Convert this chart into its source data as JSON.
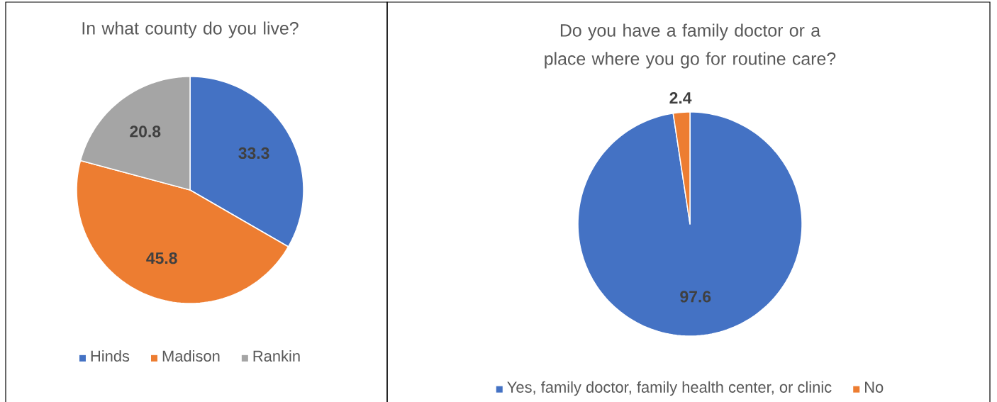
{
  "chart_data": [
    {
      "type": "pie",
      "title": "In what county do you live?",
      "categories": [
        "Hinds",
        "Madison",
        "Rankin"
      ],
      "values": [
        33.3,
        45.8,
        20.8
      ],
      "colors": [
        "#4472c4",
        "#ed7d31",
        "#a5a5a5"
      ],
      "data_labels": true,
      "legend": "bottom"
    },
    {
      "type": "pie",
      "title": "Do you have a family doctor or a place where you go for routine care?",
      "categories": [
        "Yes, family doctor, family health center, or clinic",
        "No"
      ],
      "values": [
        97.6,
        2.4
      ],
      "colors": [
        "#4472c4",
        "#ed7d31"
      ],
      "data_labels": true,
      "legend": "bottom"
    }
  ]
}
